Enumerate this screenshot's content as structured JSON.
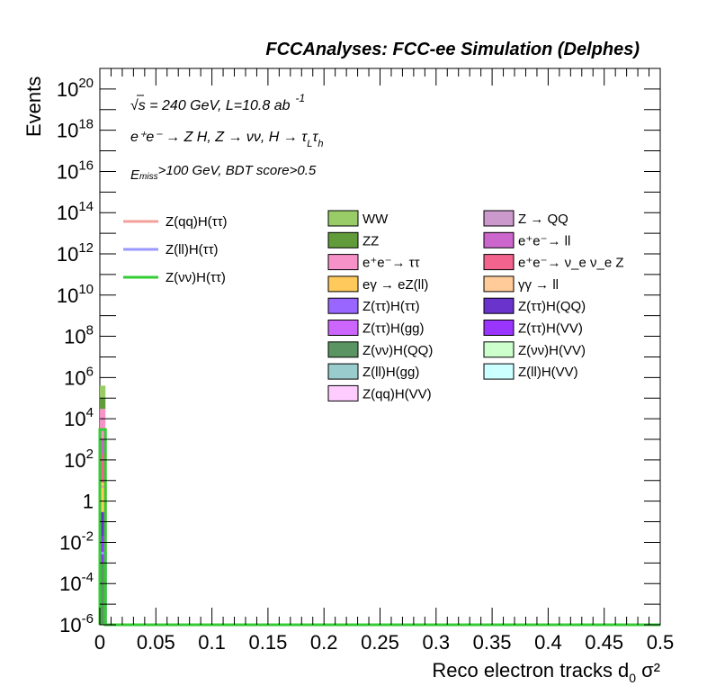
{
  "header": {
    "title": "FCCAnalyses: FCC-ee Simulation (Delphes)"
  },
  "annotations": {
    "line1": "√s = 240 GeV, L=10.8 ab",
    "line1_sup": "-1",
    "line2": "e⁺e⁻ → Z H, Z → νν, H → τ",
    "line2_sub1": "L",
    "line2_tau": "τ",
    "line2_sub2": "h",
    "line3_pre": "E",
    "line3_sub": "miss",
    "line3_post": ">100 GeV, BDT score>0.5"
  },
  "chart_data": {
    "type": "bar",
    "xlabel": "Reco electron tracks d",
    "xlabel_sub": "0",
    "xlabel_tail": "σ²",
    "ylabel": "Events",
    "xlim": [
      0,
      0.5
    ],
    "ylim": [
      1e-06,
      1e+21
    ],
    "y_log": true,
    "x_ticks": [
      "0",
      "0.05",
      "0.1",
      "0.15",
      "0.2",
      "0.25",
      "0.3",
      "0.35",
      "0.4",
      "0.45",
      "0.5"
    ],
    "y_ticks": [
      {
        "base": "10",
        "exp": "-6",
        "value": 1e-06
      },
      {
        "base": "10",
        "exp": "-4",
        "value": 0.0001
      },
      {
        "base": "10",
        "exp": "-2",
        "value": 0.01
      },
      {
        "base": "1",
        "exp": "",
        "value": 1
      },
      {
        "base": "10",
        "exp": "2",
        "value": 100.0
      },
      {
        "base": "10",
        "exp": "4",
        "value": 10000.0
      },
      {
        "base": "10",
        "exp": "6",
        "value": 1000000.0
      },
      {
        "base": "10",
        "exp": "8",
        "value": 100000000.0
      },
      {
        "base": "10",
        "exp": "10",
        "value": 10000000000.0
      },
      {
        "base": "10",
        "exp": "12",
        "value": 1000000000000.0
      },
      {
        "base": "10",
        "exp": "14",
        "value": 100000000000000.0
      },
      {
        "base": "10",
        "exp": "16",
        "value": 1e+16
      },
      {
        "base": "10",
        "exp": "18",
        "value": 1e+18
      },
      {
        "base": "10",
        "exp": "20",
        "value": 1e+20
      }
    ],
    "bin_range": [
      0,
      0.005
    ],
    "stack": [
      {
        "name": "Z(νν)H(QQ)",
        "color": "#5a9462",
        "bottom": 1e-06,
        "top": 0.001
      },
      {
        "name": "Z(ττ)H(VV)",
        "color": "#9a35ff",
        "bottom": 0.001,
        "top": 0.02
      },
      {
        "name": "Z(ττ)H(QQ)",
        "color": "#6a33cc",
        "bottom": 0.02,
        "top": 0.3
      },
      {
        "name": "eγ → eZ(ll)",
        "color": "#ffc95c",
        "bottom": 0.3,
        "top": 8
      },
      {
        "name": "e⁺e⁻ → ν_e ν_e Z",
        "color": "#f2648e",
        "bottom": 8,
        "top": 200
      },
      {
        "name": "e⁺e⁻→ ll",
        "color": "#cc66cc",
        "bottom": 200,
        "top": 1000
      },
      {
        "name": "e⁺e⁻→ ττ",
        "color": "#f792c8",
        "bottom": 1000,
        "top": 30000
      },
      {
        "name": "ZZ",
        "color": "#629c3a",
        "bottom": 30000,
        "top": 100000
      },
      {
        "name": "WW",
        "color": "#99cc66",
        "bottom": 100000,
        "top": 400000
      }
    ],
    "signal_lines": [
      {
        "name": "Z(qq)H(ττ)",
        "color": "#f4a09a",
        "value": 5
      },
      {
        "name": "Z(ll)H(ττ)",
        "color": "#9999ff",
        "value": 0.003
      },
      {
        "name": "Z(νν)H(ττ)",
        "color": "#33cc33",
        "value": 3000
      }
    ],
    "legend_lines": [
      {
        "name": "Z(qq)H(ττ)",
        "color": "#f4a09a"
      },
      {
        "name": "Z(ll)H(ττ)",
        "color": "#9999ff"
      },
      {
        "name": "Z(νν)H(ττ)",
        "color": "#33cc33"
      }
    ],
    "legend_col1": [
      {
        "name": "WW",
        "color": "#99cc66"
      },
      {
        "name": "ZZ",
        "color": "#629c3a"
      },
      {
        "name": "e⁺e⁻→ ττ",
        "color": "#f792c8"
      },
      {
        "name": "eγ → eZ(ll)",
        "color": "#ffc95c"
      },
      {
        "name": "Z(ττ)H(ττ)",
        "color": "#9966ff"
      },
      {
        "name": "Z(ττ)H(gg)",
        "color": "#cc66ff"
      },
      {
        "name": "Z(νν)H(QQ)",
        "color": "#5a9462"
      },
      {
        "name": "Z(ll)H(gg)",
        "color": "#99cccc"
      },
      {
        "name": "Z(qq)H(VV)",
        "color": "#ffccff"
      }
    ],
    "legend_col2": [
      {
        "name": "Z → QQ",
        "color": "#cc99cc"
      },
      {
        "name": "e⁺e⁻→ ll",
        "color": "#cc66cc"
      },
      {
        "name": "e⁺e⁻→ ν_e ν_e Z",
        "color": "#f2648e"
      },
      {
        "name": "γγ → ll",
        "color": "#ffcc99"
      },
      {
        "name": "Z(ττ)H(QQ)",
        "color": "#6a33cc"
      },
      {
        "name": "Z(ττ)H(VV)",
        "color": "#9a35ff"
      },
      {
        "name": "Z(νν)H(VV)",
        "color": "#ccffcc"
      },
      {
        "name": "Z(ll)H(VV)",
        "color": "#ccffff"
      }
    ],
    "grid": false,
    "legend_position": "top"
  }
}
